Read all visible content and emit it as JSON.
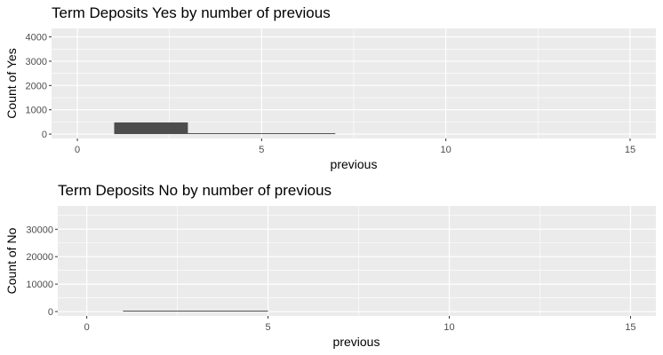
{
  "colors": {
    "panel_background": "#ebebeb",
    "gridline": "#ffffff",
    "bar_fill": "#4d4d4d",
    "tick_mark": "#333333"
  },
  "chart_data": [
    {
      "type": "bar",
      "title": "Term Deposits Yes by number of previous",
      "xlabel": "previous",
      "ylabel": "Count of Yes",
      "xlim": [
        -0.7,
        15.7
      ],
      "ylim": [
        -180,
        4350
      ],
      "x_ticks": [
        0,
        5,
        10,
        15
      ],
      "y_ticks": [
        0,
        1000,
        2000,
        3000,
        4000
      ],
      "grid": true,
      "bins": [
        {
          "x_start": 1,
          "x_end": 3,
          "value": 480
        },
        {
          "x_start": 3,
          "x_end": 5,
          "value": 30
        },
        {
          "x_start": 5,
          "x_end": 7,
          "value": 5
        }
      ]
    },
    {
      "type": "bar",
      "title": "Term Deposits No by number of previous",
      "xlabel": "previous",
      "ylabel": "Count of No",
      "xlim": [
        -0.8,
        15.7
      ],
      "ylim": [
        -1600,
        38500
      ],
      "x_ticks": [
        0,
        5,
        10,
        15
      ],
      "y_ticks": [
        0,
        10000,
        20000,
        30000
      ],
      "grid": true,
      "bins": [
        {
          "x_start": 1,
          "x_end": 3,
          "value": 200
        },
        {
          "x_start": 3,
          "x_end": 5,
          "value": 20
        }
      ]
    }
  ]
}
